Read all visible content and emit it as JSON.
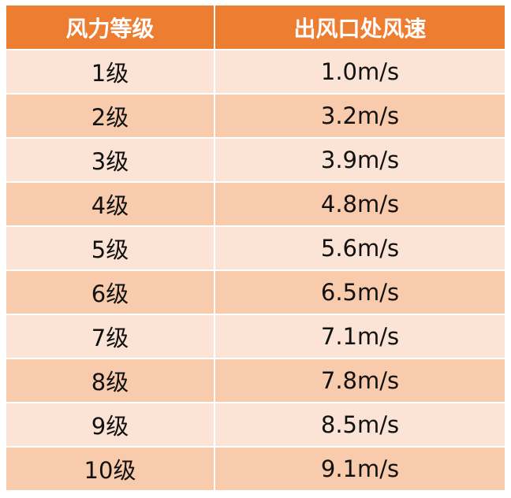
{
  "table": {
    "headers": [
      "风力等级",
      "出风口处风速"
    ],
    "rows": [
      [
        "1级",
        "1.0m/s"
      ],
      [
        "2级",
        "3.2m/s"
      ],
      [
        "3级",
        "3.9m/s"
      ],
      [
        "4级",
        "4.8m/s"
      ],
      [
        "5级",
        "5.6m/s"
      ],
      [
        "6级",
        "6.5m/s"
      ],
      [
        "7级",
        "7.1m/s"
      ],
      [
        "8级",
        "7.8m/s"
      ],
      [
        "9级",
        "8.5m/s"
      ],
      [
        "10级",
        "9.1m/s"
      ]
    ],
    "colors": {
      "header": "#ED7D31",
      "row_light": "#FBE4D5",
      "row_dark": "#F8CBAD"
    }
  }
}
